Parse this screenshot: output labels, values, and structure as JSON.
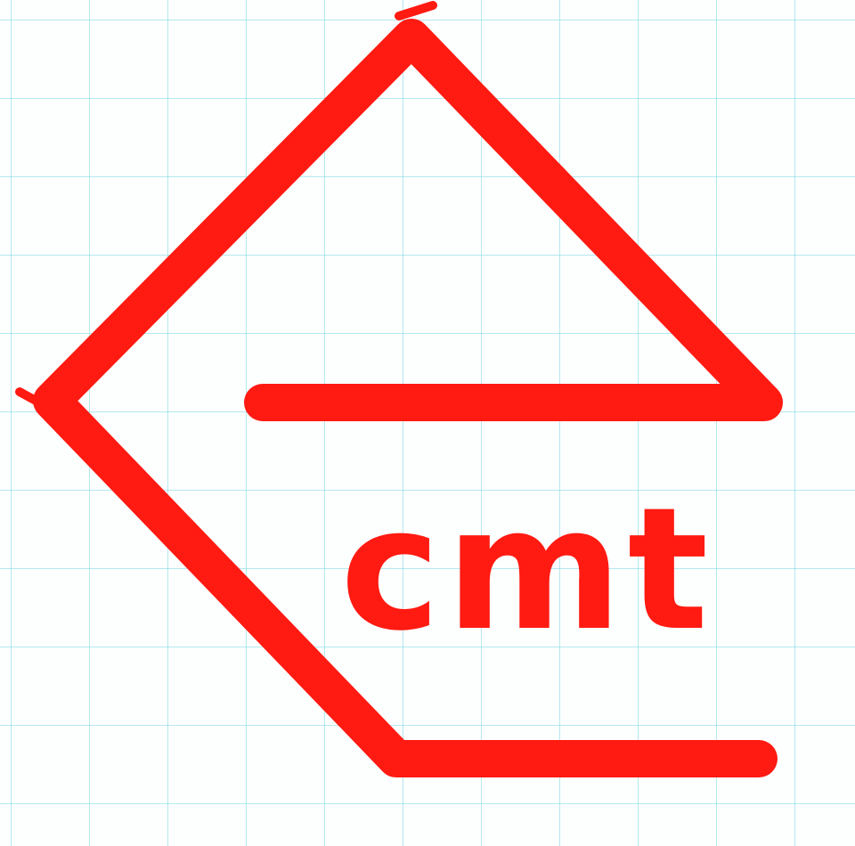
{
  "drawing": {
    "logo_text": "cmt",
    "ink_color": "#ff1a12",
    "grid_color": "#78d7e1",
    "paper_color": "#fdfefe"
  }
}
